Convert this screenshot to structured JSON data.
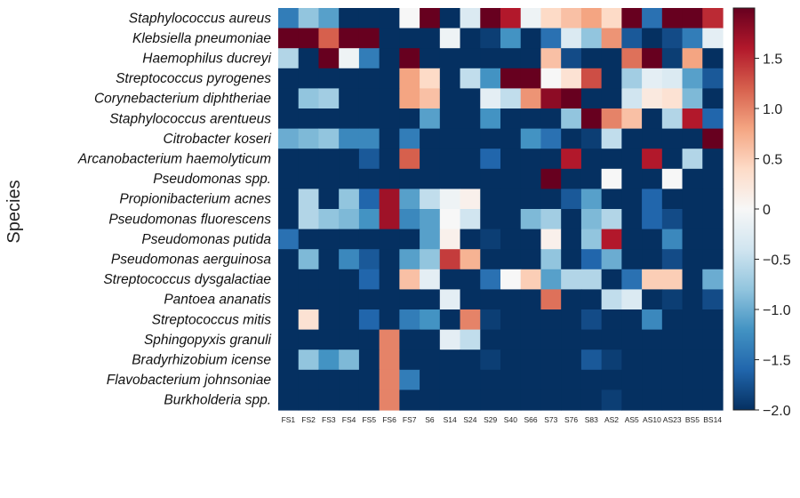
{
  "chart_data": {
    "type": "heatmap",
    "ylabel": "Species",
    "rows": [
      "Staphylococcus aureus",
      "Klebsiella pneumoniae",
      "Haemophilus ducreyi",
      "Streptococcus pyrogenes",
      "Corynebacterium diphtheriae",
      "Staphylococcus arentueus",
      "Citrobacter koseri",
      "Arcanobacterium haemolyticum",
      "Pseudomonas spp.",
      "Propionibacterium acnes",
      "Pseudomonas fluorescens",
      "Pseudomonas putida",
      "Pseudomonas aerguinosa",
      "Streptococcus dysgalactiae",
      "Pantoea ananatis",
      "Streptococcus mitis",
      "Sphingopyxis granuli",
      "Bradyrhizobium icense",
      "Flavobacterium johnsoniae",
      "Burkholderia spp."
    ],
    "columns": [
      "FS1",
      "FS2",
      "FS3",
      "FS4",
      "FS5",
      "FS6",
      "FS7",
      "S6",
      "S14",
      "S24",
      "S29",
      "S40",
      "S66",
      "S73",
      "S76",
      "S83",
      "AS2",
      "AS5",
      "AS10",
      "AS23",
      "BS5",
      "BS14"
    ],
    "values": [
      [
        -1.4,
        -0.8,
        -1.1,
        -2,
        -2,
        -2,
        0,
        2,
        -2,
        -0.3,
        2,
        1.6,
        -0.1,
        0.4,
        0.6,
        0.8,
        0.4,
        2,
        -1.5,
        2,
        2,
        1.5
      ],
      [
        2,
        2,
        1.2,
        2,
        2,
        -2,
        -2,
        -2,
        -0.1,
        -2,
        -1.9,
        -1.2,
        -2,
        -1.5,
        -0.3,
        -0.8,
        0.9,
        -1.7,
        -2,
        -1.8,
        -1.4,
        -0.2
      ],
      [
        -0.6,
        -2,
        2,
        -0.1,
        -1.4,
        -2,
        2,
        -2,
        -2,
        -2,
        -2,
        -2,
        -2,
        0.6,
        -1.8,
        -2,
        -2,
        1.1,
        2,
        -1.9,
        0.8,
        -2
      ],
      [
        -2,
        -2,
        -2,
        -2,
        -2,
        -2,
        0.8,
        0.4,
        -2,
        -0.5,
        -1.2,
        2,
        2,
        0,
        0.3,
        1.3,
        -2,
        -0.7,
        -0.2,
        -0.3,
        -1.1,
        -1.7
      ],
      [
        -2,
        -0.8,
        -0.7,
        -2,
        -2,
        -2,
        0.8,
        0.6,
        -2,
        -2,
        -0.2,
        -0.5,
        0.9,
        1.8,
        2,
        -2,
        -2,
        -0.4,
        0.2,
        0.3,
        -0.9,
        -2
      ],
      [
        -2,
        -2,
        -2,
        -2,
        -2,
        -2,
        -2,
        -1.1,
        -2,
        -2,
        -1.2,
        -2,
        -2,
        -2,
        -0.8,
        2,
        1,
        0.6,
        -2,
        -0.6,
        1.6,
        -1.6
      ],
      [
        -1,
        -0.9,
        -0.8,
        -1.3,
        -1.3,
        -2,
        -1.4,
        -2,
        -2,
        -2,
        -2,
        -2,
        -1.2,
        -1.5,
        -2,
        -1.9,
        -0.5,
        -2,
        -2,
        -2,
        -2,
        2
      ],
      [
        -2,
        -2,
        -2,
        -2,
        -1.7,
        -2,
        1.2,
        -2,
        -2,
        -2,
        -1.6,
        -2,
        -2,
        -2,
        1.6,
        -2,
        -2,
        -2,
        1.6,
        -2,
        -0.6,
        -2
      ],
      [
        -2,
        -2,
        -2,
        -2,
        -2,
        -2,
        -2,
        -2,
        -2,
        -2,
        -2,
        -2,
        -2,
        2,
        -2,
        -2,
        0,
        -2,
        -2,
        0,
        -2,
        -2
      ],
      [
        -2,
        -0.6,
        -2,
        -0.8,
        -1.6,
        1.7,
        -1.1,
        -0.5,
        -0.1,
        0.1,
        -2,
        -2,
        -2,
        -2,
        -1.7,
        -1.1,
        -2,
        -2,
        -1.6,
        -2,
        -2,
        -2
      ],
      [
        -2,
        -0.6,
        -0.8,
        -0.9,
        -1.2,
        1.7,
        -1.3,
        -1.1,
        0,
        -0.4,
        -2,
        -2,
        -0.9,
        -0.7,
        -2,
        -0.9,
        -0.6,
        -2,
        -1.6,
        -1.8,
        -2,
        -2
      ],
      [
        -1.5,
        -2,
        -2,
        -2,
        -2,
        -2,
        -2,
        -1.1,
        0.1,
        -2,
        -1.9,
        -2,
        -2,
        0.1,
        -2,
        -0.8,
        1.6,
        -2,
        -2,
        -1.3,
        -2,
        -2
      ],
      [
        -2,
        -0.9,
        -2,
        -1.3,
        -1.7,
        -2,
        -1.1,
        -0.8,
        1.4,
        0.7,
        -2,
        -2,
        -2,
        -0.8,
        -2,
        -1.6,
        -1,
        -2,
        -2,
        -1.8,
        -2,
        -2
      ],
      [
        -2,
        -2,
        -2,
        -2,
        -1.6,
        -2,
        0.6,
        -0.2,
        -2,
        -2,
        -1.5,
        0,
        0.5,
        -1.1,
        -0.6,
        -0.6,
        -2,
        -1.5,
        0.5,
        0.5,
        -2,
        -1
      ],
      [
        -2,
        -2,
        -2,
        -2,
        -2,
        -2,
        -2,
        -2,
        -0.2,
        -2,
        -2,
        -2,
        -2,
        1.1,
        -2,
        -2,
        -0.5,
        -0.3,
        -2,
        -1.9,
        -2,
        -1.8
      ],
      [
        -2,
        0.3,
        -2,
        -2,
        -1.6,
        -2,
        -1.4,
        -1.2,
        -2,
        1,
        -1.9,
        -2,
        -2,
        -2,
        -2,
        -1.8,
        -2,
        -2,
        -1.3,
        -2,
        -2,
        -2
      ],
      [
        -2,
        -2,
        -2,
        -2,
        -2,
        1,
        -2,
        -2,
        -0.2,
        -0.5,
        -2,
        -2,
        -2,
        -2,
        -2,
        -2,
        -2,
        -2,
        -2,
        -2,
        -2,
        -2
      ],
      [
        -2,
        -0.8,
        -1.2,
        -0.9,
        -2,
        1,
        -2,
        -2,
        -2,
        -2,
        -1.9,
        -2,
        -2,
        -2,
        -2,
        -1.7,
        -1.9,
        -2,
        -2,
        -2,
        -2,
        -2
      ],
      [
        -2,
        -2,
        -2,
        -2,
        -2,
        1,
        -1.4,
        -2,
        -2,
        -2,
        -2,
        -2,
        -2,
        -2,
        -2,
        -2,
        -2,
        -2,
        -2,
        -2,
        -2,
        -2
      ],
      [
        -2,
        -2,
        -2,
        -2,
        -2,
        1,
        -2,
        -2,
        -2,
        -2,
        -2,
        -2,
        -2,
        -2,
        -2,
        -2,
        -1.9,
        -2,
        -2,
        -2,
        -2,
        -2
      ]
    ],
    "vmin": -2.0,
    "vmax": 2.0,
    "colormap": "RdBu_r",
    "colorbar_ticks": [
      {
        "value": 1.5,
        "label": "1.5"
      },
      {
        "value": 1.0,
        "label": "1.0"
      },
      {
        "value": 0.5,
        "label": "0.5"
      },
      {
        "value": 0,
        "label": "0"
      },
      {
        "value": -0.5,
        "label": "−0.5"
      },
      {
        "value": -1.0,
        "label": "−1.0"
      },
      {
        "value": -1.5,
        "label": "−1.5"
      },
      {
        "value": -2.0,
        "label": "−2.0"
      }
    ],
    "colorbar_stops": [
      "#053061",
      "#2166ac",
      "#4393c3",
      "#92c5de",
      "#d1e5f0",
      "#f7f7f7",
      "#fddbc7",
      "#f4a582",
      "#d6604d",
      "#b2182b",
      "#67001f"
    ]
  }
}
